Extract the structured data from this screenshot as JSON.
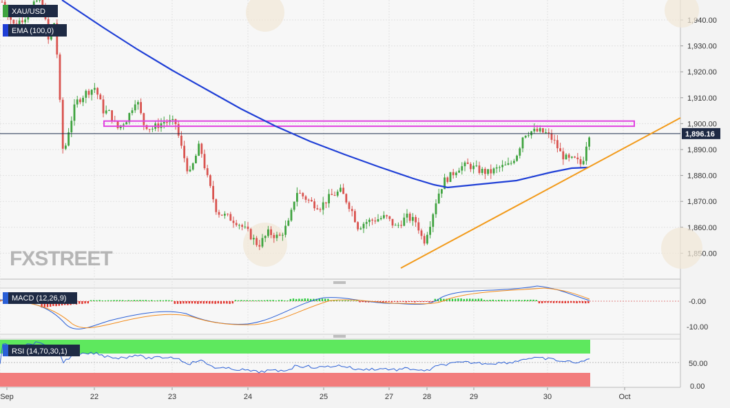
{
  "chart_data": {
    "type": "candlestick",
    "symbol": "XAU/USD",
    "price_axis": {
      "ticks": [
        1850,
        1860,
        1870,
        1880,
        1890,
        1900,
        1910,
        1920,
        1930,
        1940
      ],
      "tick_labels": [
        "1,850.00",
        "1,860.00",
        "1,870.00",
        "1,880.00",
        "1,890.00",
        "1,900.00",
        "1,910.00",
        "1,920.00",
        "1,930.00",
        "1,940.00"
      ],
      "last_price": 1896.16,
      "last_price_label": "1,896.16"
    },
    "time_axis": {
      "labels": [
        "Sep",
        "22",
        "23",
        "24",
        "25",
        "27",
        "28",
        "29",
        "30",
        "Oct"
      ]
    },
    "indicators": {
      "ema_label": "EMA (100,0)",
      "macd_label": "MACD (12,26,9)",
      "macd_ticks": [
        "-0.00",
        "-10.00"
      ],
      "rsi_label": "RSI (14,70,30,1)",
      "rsi_ticks": [
        "50.00",
        "0.00"
      ]
    },
    "resistance_zone": [
      1899,
      1901
    ],
    "watermark": "FXSTREET",
    "colors": {
      "up": "#3fa33f",
      "down": "#d9534f",
      "ema": "#1f3fd6",
      "resistance": "#e040e0",
      "trendline": "#f29a1a",
      "macd_pos": "#2ecc40",
      "macd_neg": "#e0312a",
      "macd_line": "#2a5fd6",
      "signal_line": "#f28b1a",
      "rsi_line": "#2a5fd6"
    }
  }
}
